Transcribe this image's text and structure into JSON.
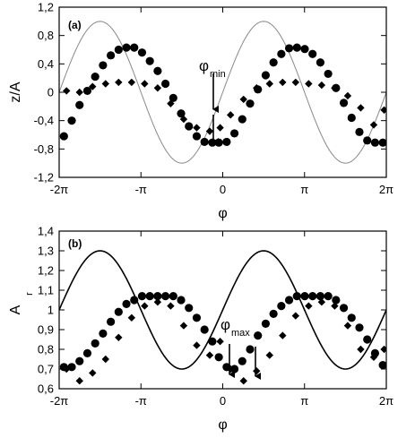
{
  "chart_data": [
    {
      "id": "a",
      "type": "scatter",
      "panel_label": "(a)",
      "xlabel": "φ",
      "ylabel": "z/A",
      "xlim": [
        -6.2832,
        6.2832
      ],
      "ylim": [
        -1.2,
        1.2
      ],
      "xticks": [
        -6.2832,
        -3.1416,
        0,
        3.1416,
        6.2832
      ],
      "xtick_labels": [
        "-2π",
        "-π",
        "0",
        "π",
        "2π"
      ],
      "yticks": [
        -1.2,
        -0.8,
        -0.4,
        0,
        0.4,
        0.8,
        1.2
      ],
      "ytick_labels": [
        "-1,2",
        "-0,8",
        "-0,4",
        "0",
        "0,4",
        "0,8",
        "1,2"
      ],
      "series": [
        {
          "marker": "line",
          "function": "sin",
          "amplitude": 1.0,
          "offset": 0.0,
          "color": "#888888",
          "x": [
            -6.2832,
            -5.8905,
            -5.4978,
            -5.1051,
            -4.7124,
            -4.3197,
            -3.927,
            -3.5343,
            -3.1416,
            -2.7489,
            -2.3562,
            -1.9635,
            -1.5708,
            -1.1781,
            -0.7854,
            -0.3927,
            0,
            0.3927,
            0.7854,
            1.1781,
            1.5708,
            1.9635,
            2.3562,
            2.7489,
            3.1416,
            3.5343,
            3.927,
            4.3197,
            4.7124,
            5.1051,
            5.4978,
            5.8905,
            6.2832
          ],
          "y": [
            0,
            0.383,
            0.707,
            0.924,
            1,
            0.924,
            0.707,
            0.383,
            0,
            -0.383,
            -0.707,
            -0.924,
            -1,
            -0.924,
            -0.707,
            -0.383,
            0,
            0.383,
            0.707,
            0.924,
            1,
            0.924,
            0.707,
            0.383,
            0,
            -0.383,
            -0.707,
            -0.924,
            -1,
            -0.924,
            -0.707,
            -0.383,
            0
          ]
        },
        {
          "marker": "circle",
          "color": "#000000",
          "x": [
            -6.1,
            -5.8,
            -5.5,
            -5.2,
            -4.9,
            -4.6,
            -4.3,
            -4.0,
            -3.7,
            -3.4,
            -3.1,
            -2.8,
            -2.5,
            -2.2,
            -1.9,
            -1.6,
            -1.3,
            -1.0,
            -0.7,
            -0.4,
            -0.15,
            0.15,
            0.45,
            0.75,
            1.05,
            1.35,
            1.65,
            1.95,
            2.25,
            2.55,
            2.85,
            3.15,
            3.45,
            3.75,
            4.05,
            4.35,
            4.65,
            4.95,
            5.25,
            5.55,
            5.85,
            6.15
          ],
          "y": [
            -0.62,
            -0.4,
            -0.18,
            0.02,
            0.22,
            0.38,
            0.52,
            0.6,
            0.63,
            0.63,
            0.56,
            0.44,
            0.3,
            0.12,
            -0.08,
            -0.3,
            -0.48,
            -0.62,
            -0.7,
            -0.71,
            -0.71,
            -0.7,
            -0.58,
            -0.38,
            -0.16,
            0.04,
            0.24,
            0.42,
            0.54,
            0.62,
            0.63,
            0.61,
            0.54,
            0.42,
            0.26,
            0.06,
            -0.15,
            -0.36,
            -0.56,
            -0.68,
            -0.71,
            -0.71
          ]
        },
        {
          "marker": "diamond",
          "color": "#000000",
          "x": [
            -6.0,
            -5.5,
            -5.0,
            -4.5,
            -4.0,
            -3.5,
            -3.0,
            -2.5,
            -2.0,
            -1.5,
            -1.0,
            -0.5,
            -0.1,
            0.3,
            0.8,
            1.3,
            1.8,
            2.3,
            2.8,
            3.3,
            3.8,
            4.3,
            4.8,
            5.3,
            5.8,
            6.2
          ],
          "y": [
            0.02,
            0.0,
            0.08,
            0.12,
            0.14,
            0.14,
            0.12,
            0.06,
            -0.16,
            -0.38,
            -0.5,
            -0.55,
            -0.5,
            -0.32,
            -0.1,
            0.06,
            0.12,
            0.14,
            0.14,
            0.12,
            0.1,
            0.06,
            -0.05,
            -0.22,
            -0.46,
            -0.25
          ]
        }
      ],
      "annotations": [
        {
          "symbol": "φ",
          "subscript": "min",
          "x": -0.3,
          "y": -0.75
        }
      ]
    },
    {
      "id": "b",
      "type": "scatter",
      "panel_label": "(b)",
      "xlabel": "φ",
      "ylabel": "A",
      "ylabel_sub": "r",
      "xlim": [
        -6.2832,
        6.2832
      ],
      "ylim": [
        0.6,
        1.4
      ],
      "xticks": [
        -6.2832,
        -3.1416,
        0,
        3.1416,
        6.2832
      ],
      "xtick_labels": [
        "-2π",
        "-π",
        "0",
        "π",
        "2π"
      ],
      "yticks": [
        0.6,
        0.7,
        0.8,
        0.9,
        1.0,
        1.1,
        1.2,
        1.3,
        1.4
      ],
      "ytick_labels": [
        "0,6",
        "0,7",
        "0,8",
        "0,9",
        "1",
        "1,1",
        "1,2",
        "1,3",
        "1,4"
      ],
      "series": [
        {
          "marker": "line",
          "function": "sin",
          "amplitude": 0.3,
          "offset": 1.0,
          "color": "#000000",
          "x": [
            -6.2832,
            -5.8905,
            -5.4978,
            -5.1051,
            -4.7124,
            -4.3197,
            -3.927,
            -3.5343,
            -3.1416,
            -2.7489,
            -2.3562,
            -1.9635,
            -1.5708,
            -1.1781,
            -0.7854,
            -0.3927,
            0,
            0.3927,
            0.7854,
            1.1781,
            1.5708,
            1.9635,
            2.3562,
            2.7489,
            3.1416,
            3.5343,
            3.927,
            4.3197,
            4.7124,
            5.1051,
            5.4978,
            5.8905,
            6.2832
          ],
          "y": [
            1,
            1.115,
            1.212,
            1.277,
            1.3,
            1.277,
            1.212,
            1.115,
            1,
            0.885,
            0.788,
            0.723,
            0.7,
            0.723,
            0.788,
            0.885,
            1,
            1.115,
            1.212,
            1.277,
            1.3,
            1.277,
            1.212,
            1.115,
            1,
            0.885,
            0.788,
            0.723,
            0.7,
            0.723,
            0.788,
            0.885,
            1
          ]
        },
        {
          "marker": "circle",
          "color": "#000000",
          "x": [
            -6.1,
            -5.8,
            -5.5,
            -5.2,
            -4.9,
            -4.6,
            -4.3,
            -4.0,
            -3.7,
            -3.4,
            -3.1,
            -2.8,
            -2.5,
            -2.2,
            -1.9,
            -1.6,
            -1.3,
            -1.0,
            -0.7,
            -0.4,
            -0.15,
            0.15,
            0.45,
            0.75,
            1.05,
            1.35,
            1.65,
            1.95,
            2.25,
            2.55,
            2.85,
            3.15,
            3.45,
            3.75,
            4.05,
            4.35,
            4.65,
            4.95,
            5.25,
            5.55,
            5.85,
            6.15
          ],
          "y": [
            0.71,
            0.71,
            0.74,
            0.78,
            0.83,
            0.88,
            0.94,
            0.99,
            1.03,
            1.05,
            1.07,
            1.07,
            1.07,
            1.07,
            1.07,
            1.05,
            1.01,
            0.96,
            0.9,
            0.84,
            0.76,
            0.71,
            0.7,
            0.74,
            0.8,
            0.87,
            0.93,
            0.98,
            1.02,
            1.05,
            1.07,
            1.07,
            1.07,
            1.07,
            1.07,
            1.05,
            1.01,
            0.96,
            0.91,
            0.85,
            0.78,
            0.72
          ]
        },
        {
          "marker": "diamond",
          "color": "#000000",
          "x": [
            -6.0,
            -5.5,
            -5.0,
            -4.5,
            -4.0,
            -3.5,
            -3.0,
            -2.5,
            -2.0,
            -1.5,
            -1.0,
            -0.5,
            -0.1,
            0.3,
            0.8,
            1.3,
            1.8,
            2.3,
            2.8,
            3.3,
            3.8,
            4.3,
            4.8,
            5.3,
            5.8,
            6.2
          ],
          "y": [
            0.7,
            0.64,
            0.68,
            0.75,
            0.86,
            0.96,
            1.02,
            1.04,
            1.02,
            0.92,
            0.82,
            0.77,
            0.84,
            0.7,
            0.64,
            0.69,
            0.77,
            0.87,
            0.97,
            1.02,
            1.04,
            1.02,
            0.92,
            0.8,
            0.76,
            0.8
          ]
        }
      ],
      "annotations": [
        {
          "symbol": "φ",
          "subscript": "max",
          "x": 0.6,
          "y": 0.64
        }
      ]
    }
  ]
}
